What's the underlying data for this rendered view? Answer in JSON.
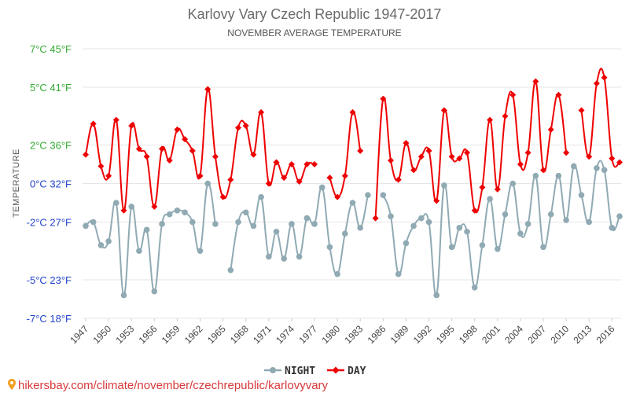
{
  "chart_data": {
    "type": "line",
    "title": "Karlovy Vary Czech Republic 1947-2017",
    "subtitle": "NOVEMBER AVERAGE TEMPERATURE",
    "ylabel": "TEMPERATURE",
    "ylim": [
      -7,
      7
    ],
    "y_ticks": [
      {
        "value": 7,
        "label": "7°C 45°F"
      },
      {
        "value": 5,
        "label": "5°C 41°F"
      },
      {
        "value": 2,
        "label": "2°C 36°F"
      },
      {
        "value": 0,
        "label": "0°C 32°F"
      },
      {
        "value": -2,
        "label": "-2°C 27°F"
      },
      {
        "value": -5,
        "label": "-5°C 23°F"
      },
      {
        "value": -7,
        "label": "-7°C 18°F"
      }
    ],
    "x_tick_labels": [
      "1947",
      "1950",
      "1953",
      "1956",
      "1959",
      "1962",
      "1965",
      "1968",
      "1971",
      "1974",
      "1977",
      "1980",
      "1983",
      "1986",
      "1989",
      "1992",
      "1995",
      "1998",
      "2001",
      "2004",
      "2007",
      "2010",
      "2013",
      "2016"
    ],
    "x": [
      1947,
      1948,
      1949,
      1950,
      1951,
      1952,
      1953,
      1954,
      1955,
      1956,
      1957,
      1958,
      1959,
      1960,
      1961,
      1962,
      1963,
      1964,
      1965,
      1966,
      1967,
      1968,
      1969,
      1970,
      1971,
      1972,
      1973,
      1974,
      1975,
      1976,
      1977,
      1978,
      1979,
      1980,
      1981,
      1982,
      1983,
      1984,
      1985,
      1986,
      1987,
      1988,
      1989,
      1990,
      1991,
      1992,
      1993,
      1994,
      1995,
      1996,
      1997,
      1998,
      1999,
      2000,
      2001,
      2002,
      2003,
      2004,
      2005,
      2006,
      2007,
      2008,
      2009,
      2010,
      2011,
      2012,
      2013,
      2014,
      2015,
      2016,
      2017
    ],
    "series": [
      {
        "name": "NIGHT",
        "color": "#90aab3",
        "values": [
          -2.2,
          -2.0,
          -3.2,
          -3.0,
          -1.0,
          -5.8,
          -1.2,
          -3.5,
          -2.4,
          -5.6,
          -2.1,
          -1.6,
          -1.4,
          -1.5,
          -2.0,
          -3.5,
          0.0,
          -2.1,
          null,
          -4.5,
          -2.0,
          -1.5,
          -2.2,
          -0.7,
          -3.8,
          -2.5,
          -3.9,
          -2.1,
          -3.8,
          -1.8,
          -2.1,
          -0.2,
          -3.3,
          -4.7,
          -2.6,
          -1.0,
          -2.3,
          -0.6,
          null,
          -0.6,
          -1.7,
          -4.7,
          -3.1,
          -2.2,
          -1.8,
          -2.0,
          -5.8,
          -0.1,
          -3.3,
          -2.3,
          -2.5,
          -5.4,
          -3.2,
          -0.8,
          -3.4,
          -1.6,
          0.0,
          -2.6,
          -2.1,
          0.4,
          -3.3,
          -1.6,
          0.4,
          -1.9,
          0.9,
          -0.6,
          -2.0,
          0.8,
          0.7,
          -2.3,
          -1.7
        ]
      },
      {
        "name": "DAY",
        "color": "#ee0000",
        "values": [
          1.5,
          3.1,
          0.9,
          0.4,
          3.3,
          -1.4,
          3.0,
          1.8,
          1.4,
          -1.2,
          1.8,
          1.2,
          2.8,
          2.3,
          1.7,
          0.4,
          4.9,
          1.4,
          -0.7,
          0.2,
          2.9,
          3.0,
          1.5,
          3.7,
          0.0,
          1.1,
          0.3,
          1.0,
          0.1,
          1.0,
          1.0,
          null,
          0.3,
          -0.7,
          0.4,
          3.7,
          1.7,
          null,
          -1.8,
          4.4,
          1.2,
          0.2,
          2.1,
          0.7,
          1.4,
          1.7,
          -0.9,
          3.8,
          1.4,
          1.3,
          1.6,
          -1.4,
          -0.2,
          3.3,
          -0.3,
          3.5,
          4.6,
          1.0,
          1.6,
          5.3,
          0.7,
          2.8,
          4.6,
          1.6,
          null,
          3.8,
          1.4,
          5.2,
          5.5,
          1.3,
          1.1
        ]
      }
    ]
  },
  "legend": {
    "night_label": "NIGHT",
    "day_label": "DAY"
  },
  "credit": "hikersbay.com/climate/november/czechrepublic/karlovyvary",
  "colors": {
    "axis_text_pos": "#33aa33",
    "axis_text_zero": "#2244cc",
    "axis_text_neg": "#2244cc",
    "grid": "#e6e6e6"
  }
}
